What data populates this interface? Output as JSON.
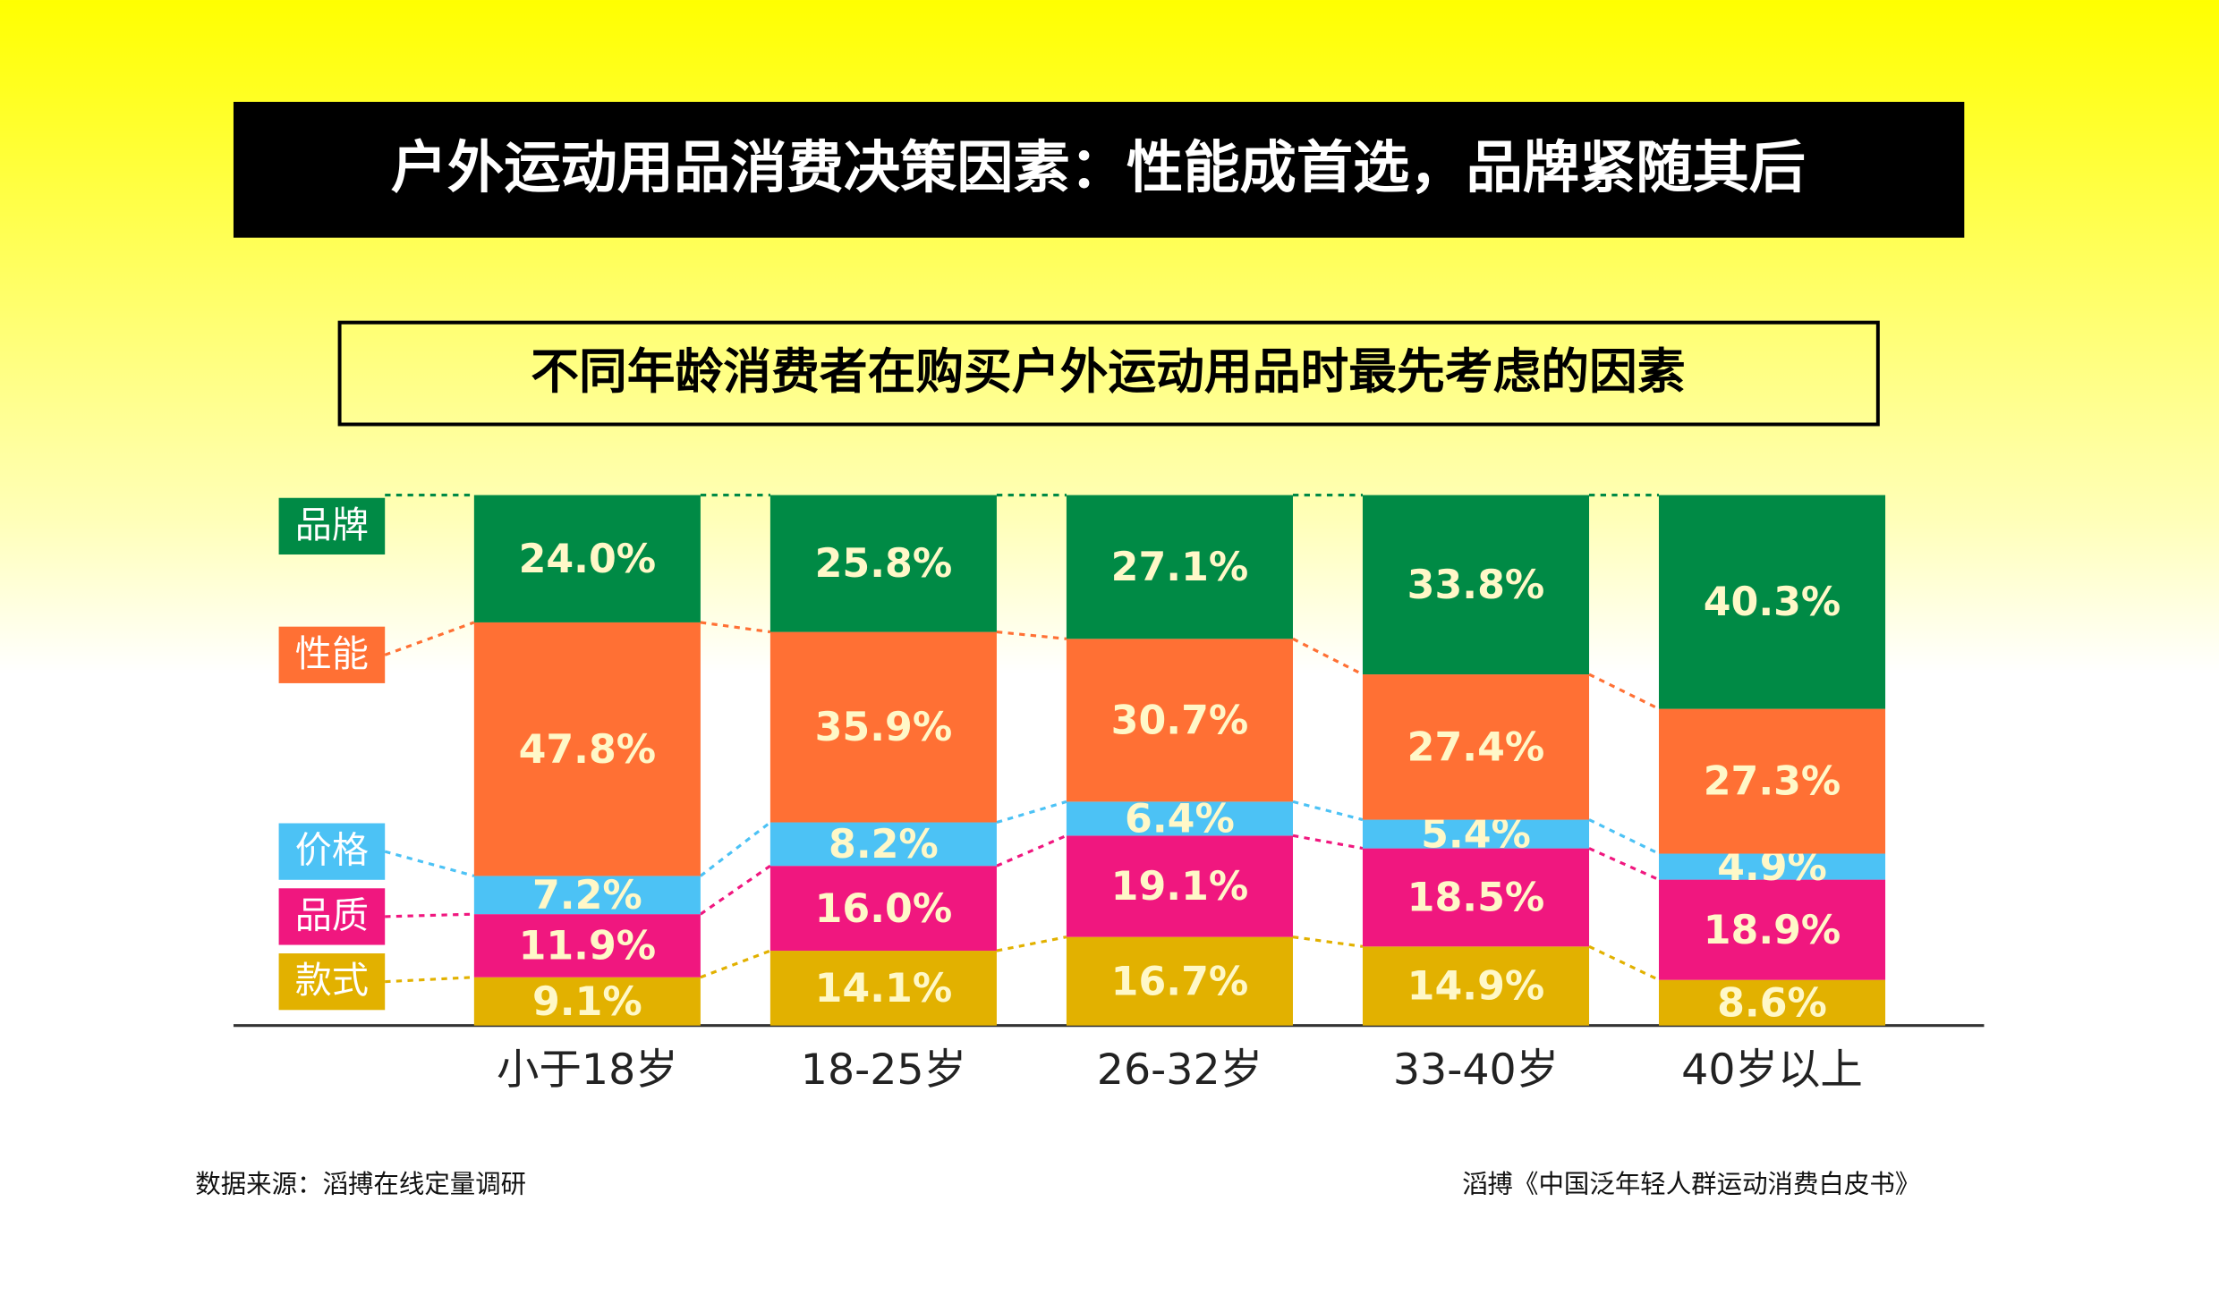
{
  "chart_data": {
    "type": "stacked_bar_100",
    "title": "户外运动用品消费决策因素：性能成首选，品牌紧随其后",
    "subtitle": "不同年龄消费者在购买户外运动用品时最先考虑的因素",
    "source": "数据来源：滔搏在线定量调研",
    "credit": "滔搏《中国泛年轻人群运动消费白皮书》",
    "categories": [
      "小于18岁",
      "18-25岁",
      "26-32岁",
      "33-40岁",
      "40岁以上"
    ],
    "ylim": [
      0,
      100
    ],
    "series": [
      {
        "name": "款式",
        "color": "#e2b100",
        "values": [
          9.1,
          14.1,
          16.7,
          14.9,
          8.6
        ],
        "value_labels": [
          "9.1%",
          "14.1%",
          "16.7%",
          "14.9%",
          "8.6%"
        ]
      },
      {
        "name": "品质",
        "color": "#f0177f",
        "values": [
          11.9,
          16.0,
          19.1,
          18.5,
          18.9
        ],
        "value_labels": [
          "11.9%",
          "16.0%",
          "19.1%",
          "18.5%",
          "18.9%"
        ]
      },
      {
        "name": "价格",
        "color": "#4cc2f5",
        "values": [
          7.2,
          8.2,
          6.4,
          5.4,
          4.9
        ],
        "value_labels": [
          "7.2%",
          "8.2%",
          "6.4%",
          "5.4%",
          "4.9%"
        ]
      },
      {
        "name": "性能",
        "color": "#ff7034",
        "values": [
          47.8,
          35.9,
          30.7,
          27.4,
          27.3
        ],
        "value_labels": [
          "47.8%",
          "35.9%",
          "30.7%",
          "27.4%",
          "27.3%"
        ]
      },
      {
        "name": "品牌",
        "color": "#008a45",
        "values": [
          24.0,
          25.8,
          27.1,
          33.8,
          40.3
        ],
        "value_labels": [
          "24.0%",
          "25.8%",
          "27.1%",
          "33.8%",
          "40.3%"
        ]
      }
    ]
  }
}
